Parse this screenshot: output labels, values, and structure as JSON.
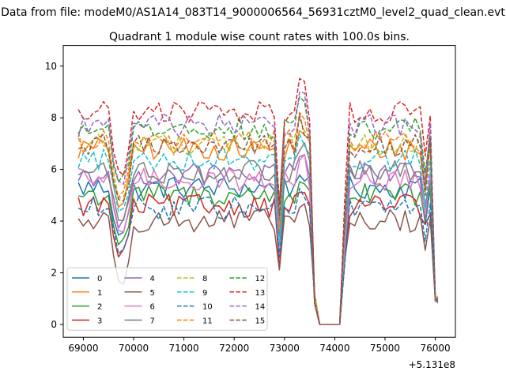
{
  "header": {
    "suptitle": "Data from file: modeM0/AS1A14_083T14_9000006564_56931cztM0_level2_quad_clean.evt"
  },
  "chart_data": {
    "type": "line",
    "title": "Quadrant 1 module wise count rates with 100.0s bins.",
    "xlabel": "",
    "ylabel": "",
    "x_offset_label": "+5.131e8",
    "xlim": [
      68600,
      76400
    ],
    "ylim": [
      -0.5,
      10.8
    ],
    "xticks": [
      69000,
      70000,
      71000,
      72000,
      73000,
      74000,
      75000,
      76000
    ],
    "xtick_labels": [
      "69000",
      "70000",
      "71000",
      "72000",
      "73000",
      "74000",
      "75000",
      "76000"
    ],
    "yticks": [
      0,
      2,
      4,
      6,
      8,
      10
    ],
    "ytick_labels": [
      "0",
      "2",
      "4",
      "6",
      "8",
      "10"
    ],
    "grid": false,
    "legend_position": "lower-left",
    "legend_columns": 4,
    "series": [
      {
        "name": "0",
        "color": "#1f77b4",
        "dash": "solid",
        "base": 5.3,
        "dip": 2.0
      },
      {
        "name": "1",
        "color": "#ff7f0e",
        "dash": "solid",
        "base": 6.8,
        "dip": 2.5
      },
      {
        "name": "2",
        "color": "#2ca02c",
        "dash": "solid",
        "base": 5.0,
        "dip": 2.1
      },
      {
        "name": "3",
        "color": "#d62728",
        "dash": "solid",
        "base": 4.6,
        "dip": 2.2
      },
      {
        "name": "4",
        "color": "#9467bd",
        "dash": "solid",
        "base": 5.8,
        "dip": 2.3
      },
      {
        "name": "5",
        "color": "#8c564b",
        "dash": "solid",
        "base": 4.0,
        "dip": 2.6
      },
      {
        "name": "6",
        "color": "#e377c2",
        "dash": "solid",
        "base": 5.6,
        "dip": 2.2
      },
      {
        "name": "7",
        "color": "#7f7f7f",
        "dash": "solid",
        "base": 5.9,
        "dip": 2.1
      },
      {
        "name": "8",
        "color": "#bcbd22",
        "dash": "dashed",
        "base": 7.0,
        "dip": 2.4
      },
      {
        "name": "9",
        "color": "#17becf",
        "dash": "dashed",
        "base": 6.4,
        "dip": 2.3
      },
      {
        "name": "10",
        "color": "#1f77b4",
        "dash": "dashed",
        "base": 4.5,
        "dip": 2.0
      },
      {
        "name": "11",
        "color": "#ff7f0e",
        "dash": "dashed",
        "base": 7.1,
        "dip": 2.5
      },
      {
        "name": "12",
        "color": "#2ca02c",
        "dash": "dashed",
        "base": 7.6,
        "dip": 2.4
      },
      {
        "name": "13",
        "color": "#d62728",
        "dash": "dashed",
        "base": 8.2,
        "dip": 2.6
      },
      {
        "name": "14",
        "color": "#9467bd",
        "dash": "dashed",
        "base": 7.7,
        "dip": 2.5
      },
      {
        "name": "15",
        "color": "#8c564b",
        "dash": "dashed",
        "base": 6.9,
        "dip": 2.4
      }
    ]
  }
}
